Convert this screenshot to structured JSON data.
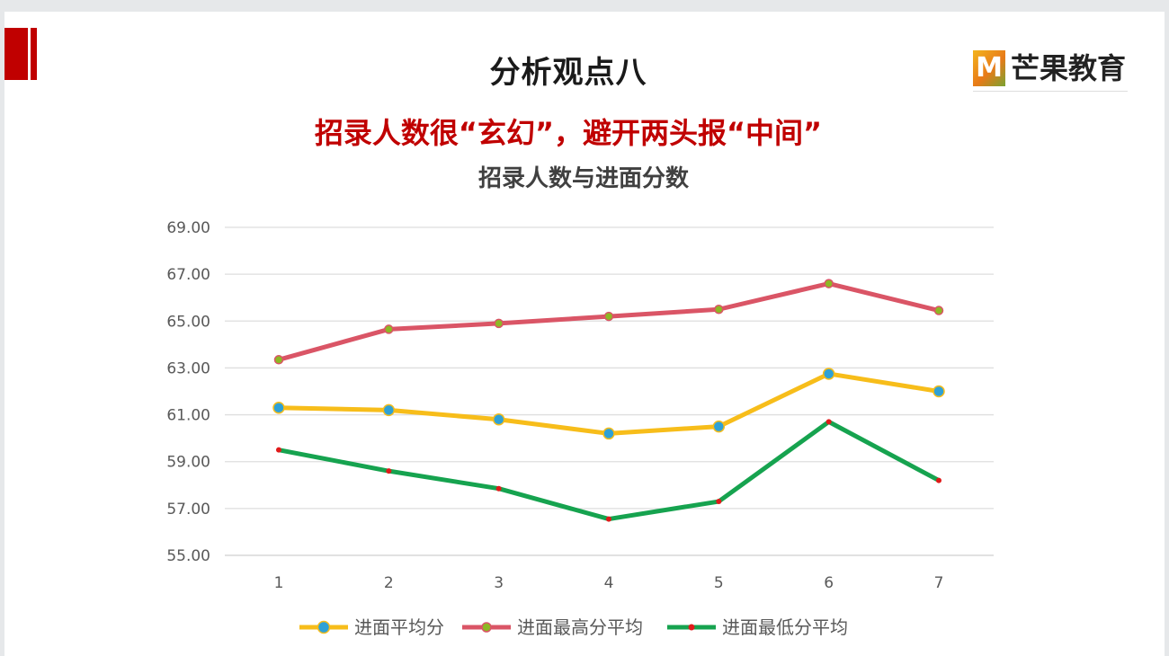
{
  "slide": {
    "title": "分析观点八",
    "subtitle": "招录人数很“玄幻”，避开两头报“中间”",
    "logo_mark": "M",
    "logo_text": "芒果教育"
  },
  "chart_data": {
    "type": "line",
    "title": "招录人数与进面分数",
    "xlabel": "",
    "ylabel": "",
    "categories": [
      "1",
      "2",
      "3",
      "4",
      "5",
      "6",
      "7"
    ],
    "y_ticks": [
      "55.00",
      "57.00",
      "59.00",
      "61.00",
      "63.00",
      "65.00",
      "67.00",
      "69.00"
    ],
    "ylim": [
      55,
      69
    ],
    "grid": true,
    "legend_position": "bottom",
    "series": [
      {
        "name": "进面平均分",
        "color": "#f7bd1a",
        "marker_color": "#2fa1d6",
        "values": [
          61.3,
          61.2,
          60.8,
          60.2,
          60.5,
          62.75,
          62.0
        ]
      },
      {
        "name": "进面最高分平均",
        "color": "#da5566",
        "marker_color": "#8db824",
        "values": [
          63.35,
          64.65,
          64.9,
          65.2,
          65.5,
          66.6,
          65.45
        ]
      },
      {
        "name": "进面最低分平均",
        "color": "#16a34f",
        "marker_color": "#e01a1a",
        "values": [
          59.5,
          58.6,
          57.85,
          56.55,
          57.3,
          60.7,
          58.2
        ]
      }
    ]
  }
}
